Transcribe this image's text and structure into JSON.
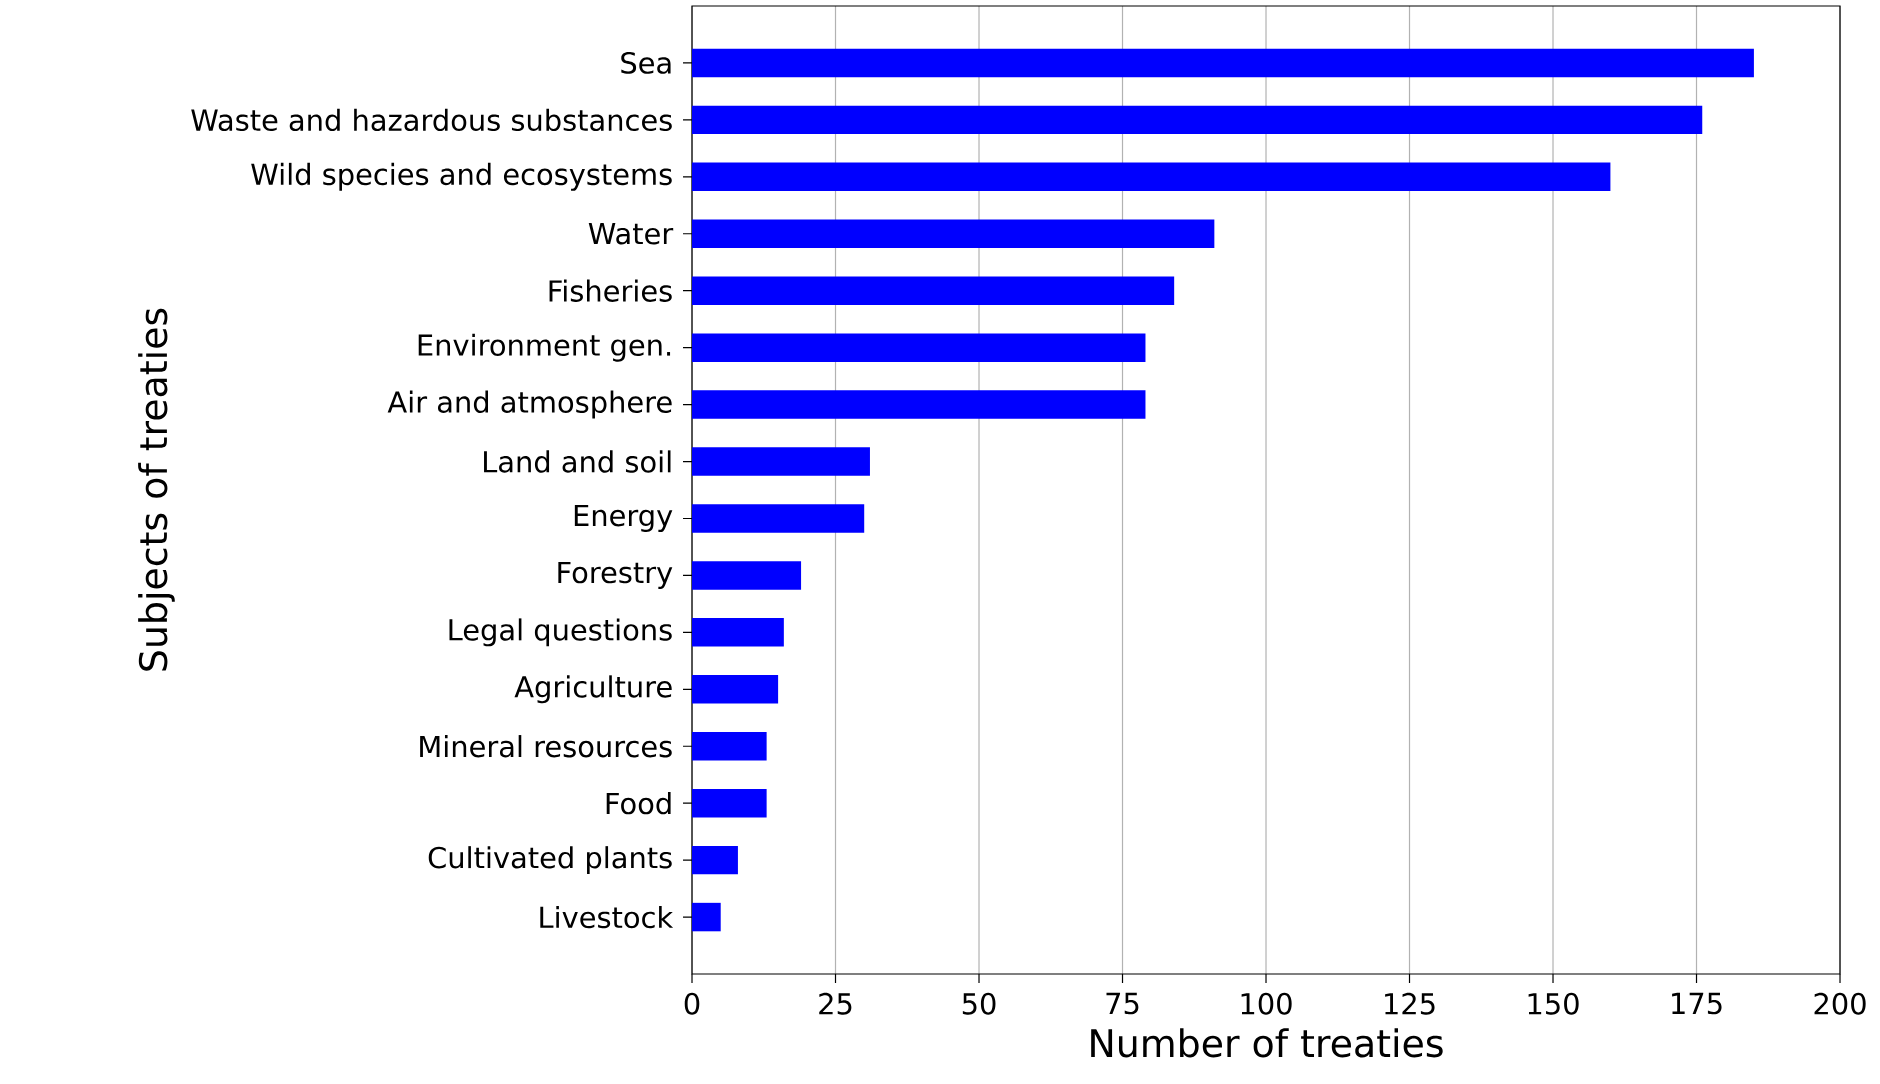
{
  "chart_data": {
    "type": "bar",
    "orientation": "horizontal",
    "xlabel": "Number of treaties",
    "ylabel": "Subjects of treaties",
    "categories": [
      "Sea",
      "Waste and hazardous substances",
      "Wild species and ecosystems",
      "Water",
      "Fisheries",
      "Environment gen.",
      "Air and atmosphere",
      "Land and soil",
      "Energy",
      "Forestry",
      "Legal questions",
      "Agriculture",
      "Mineral resources",
      "Food",
      "Cultivated plants",
      "Livestock"
    ],
    "values": [
      185,
      176,
      160,
      91,
      84,
      79,
      79,
      31,
      30,
      19,
      16,
      15,
      13,
      13,
      8,
      5
    ],
    "color": "#0000ff",
    "xlim": [
      0,
      200
    ],
    "xticks": [
      0,
      25,
      50,
      75,
      100,
      125,
      150,
      175,
      200
    ],
    "grid": "x"
  }
}
